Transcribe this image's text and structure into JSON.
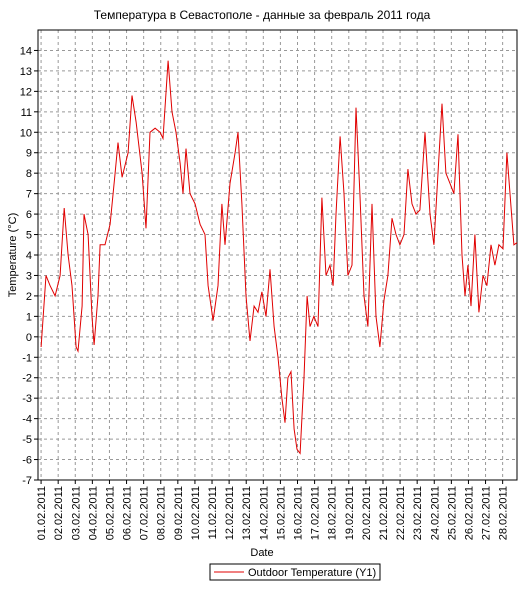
{
  "chart_data": {
    "type": "line",
    "title": "Температура в Севастополе - данные за февраль 2011 года",
    "xlabel": "Date",
    "ylabel": "Temperature (°C)",
    "legend": "bottom",
    "grid": true,
    "xlim": [
      0.82,
      28.84
    ],
    "ylim": [
      -7,
      15
    ],
    "yticks": [
      -7,
      -6,
      -5,
      -4,
      -3,
      -2,
      -1,
      0,
      1,
      2,
      3,
      4,
      5,
      6,
      7,
      8,
      9,
      10,
      11,
      12,
      13,
      14
    ],
    "xticks": [
      {
        "value": 1,
        "label": "01.02.2011"
      },
      {
        "value": 2,
        "label": "02.02.2011"
      },
      {
        "value": 3,
        "label": "03.02.2011"
      },
      {
        "value": 4,
        "label": "04.02.2011"
      },
      {
        "value": 5,
        "label": "05.02.2011"
      },
      {
        "value": 6,
        "label": "06.02.2011"
      },
      {
        "value": 7,
        "label": "07.02.2011"
      },
      {
        "value": 8,
        "label": "08.02.2011"
      },
      {
        "value": 9,
        "label": "09.02.2011"
      },
      {
        "value": 10,
        "label": "10.02.2011"
      },
      {
        "value": 11,
        "label": "11.02.2011"
      },
      {
        "value": 12,
        "label": "12.02.2011"
      },
      {
        "value": 13,
        "label": "13.02.2011"
      },
      {
        "value": 14,
        "label": "14.02.2011"
      },
      {
        "value": 15,
        "label": "15.02.2011"
      },
      {
        "value": 16,
        "label": "16.02.2011"
      },
      {
        "value": 17,
        "label": "17.02.2011"
      },
      {
        "value": 18,
        "label": "18.02.2011"
      },
      {
        "value": 19,
        "label": "19.02.2011"
      },
      {
        "value": 20,
        "label": "20.02.2011"
      },
      {
        "value": 21,
        "label": "21.02.2011"
      },
      {
        "value": 22,
        "label": "22.02.2011"
      },
      {
        "value": 23,
        "label": "23.02.2011"
      },
      {
        "value": 24,
        "label": "24.02.2011"
      },
      {
        "value": 25,
        "label": "25.02.2011"
      },
      {
        "value": 26,
        "label": "26.02.2011"
      },
      {
        "value": 27,
        "label": "27.02.2011"
      },
      {
        "value": 28,
        "label": "28.02.2011"
      }
    ],
    "series": [
      {
        "name": "Outdoor Temperature (Y1)",
        "color": "#e00000",
        "x": [
          1.0,
          1.29,
          1.53,
          1.82,
          2.11,
          2.35,
          2.58,
          2.81,
          3.05,
          3.16,
          3.4,
          3.51,
          3.75,
          3.98,
          4.1,
          4.33,
          4.45,
          4.74,
          5.04,
          5.33,
          5.5,
          5.74,
          6.09,
          6.32,
          6.56,
          6.91,
          7.14,
          7.37,
          7.67,
          7.96,
          8.13,
          8.43,
          8.66,
          8.89,
          9.13,
          9.3,
          9.48,
          9.71,
          10.01,
          10.3,
          10.59,
          10.77,
          11.06,
          11.35,
          11.58,
          11.76,
          12.05,
          12.35,
          12.52,
          12.75,
          12.99,
          13.22,
          13.46,
          13.69,
          13.92,
          14.16,
          14.39,
          14.63,
          14.86,
          15.09,
          15.27,
          15.44,
          15.62,
          15.8,
          15.97,
          16.15,
          16.38,
          16.56,
          16.73,
          16.96,
          17.2,
          17.43,
          17.67,
          17.9,
          18.08,
          18.25,
          18.49,
          18.72,
          18.95,
          19.19,
          19.42,
          19.65,
          19.89,
          20.12,
          20.36,
          20.59,
          20.82,
          21.06,
          21.29,
          21.53,
          21.76,
          21.99,
          22.23,
          22.46,
          22.7,
          22.93,
          23.16,
          23.46,
          23.75,
          23.98,
          24.22,
          24.45,
          24.68,
          24.92,
          25.15,
          25.39,
          25.62,
          25.8,
          25.97,
          26.15,
          26.38,
          26.61,
          26.85,
          27.08,
          27.32,
          27.55,
          27.78,
          28.02,
          28.25,
          28.43,
          28.66,
          28.84
        ],
        "values": [
          -0.5,
          3,
          2.5,
          2,
          3,
          6.3,
          4,
          2.5,
          -0.5,
          -0.7,
          1.5,
          6,
          5,
          1,
          -0.4,
          2,
          4.5,
          4.5,
          5.5,
          8,
          9.5,
          7.8,
          9,
          11.8,
          10.5,
          8,
          5.3,
          10,
          10.2,
          10,
          9.7,
          13.5,
          11,
          10,
          8.5,
          7,
          9.2,
          7,
          6.5,
          5.5,
          5,
          2.5,
          0.8,
          2.5,
          6.5,
          4.5,
          7.5,
          9,
          10,
          6.5,
          2,
          -0.2,
          1.5,
          1.2,
          2.2,
          1,
          3.3,
          0.5,
          -1,
          -3,
          -4.2,
          -2,
          -1.7,
          -4.5,
          -5.5,
          -5.7,
          -2,
          2,
          0.5,
          1,
          0.5,
          6.8,
          3,
          3.5,
          2.5,
          6,
          9.8,
          7,
          3,
          3.5,
          11.2,
          7,
          2,
          0.5,
          6.5,
          1,
          -0.5,
          1.8,
          3,
          5.8,
          5,
          4.5,
          5,
          8.2,
          6.5,
          6,
          6.2,
          10,
          6,
          4.5,
          8,
          11.4,
          8,
          7.5,
          7,
          9.9,
          4,
          2,
          3.5,
          1.5,
          5,
          1.2,
          3,
          2.5,
          4.5,
          3.5,
          4.5,
          4.3,
          9,
          7,
          4.5,
          4.6
        ]
      }
    ]
  }
}
